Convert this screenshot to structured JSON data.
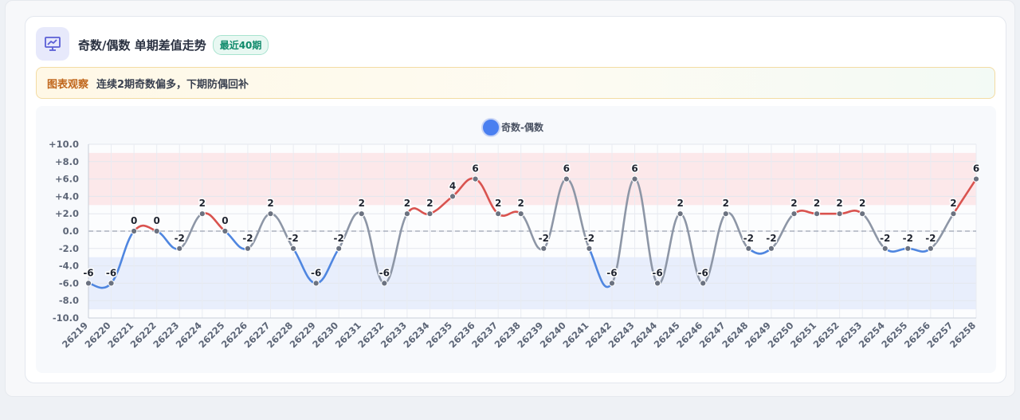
{
  "header": {
    "title": "奇数/偶数 单期差值走势",
    "badge": "最近40期"
  },
  "note": {
    "label": "图表观察",
    "text": "连续2期奇数偏多，下期防偶回补"
  },
  "colors": {
    "positive_line": "#d9534f",
    "negative_line": "#4f86e0",
    "zero_line": "#8d96a6",
    "positive_band": "#fbe4e6",
    "negative_band": "#e4ebfb",
    "legend_dot": "#4a7ff0",
    "accent": "#5b5fd6"
  },
  "chart_data": {
    "type": "line",
    "legend": "奇数-偶数",
    "legend_position": "top-center",
    "x": [
      "26219",
      "26220",
      "26221",
      "26222",
      "26223",
      "26224",
      "26225",
      "26226",
      "26227",
      "26228",
      "26229",
      "26230",
      "26231",
      "26232",
      "26233",
      "26234",
      "26235",
      "26236",
      "26237",
      "26238",
      "26239",
      "26240",
      "26241",
      "26242",
      "26243",
      "26244",
      "26245",
      "26246",
      "26247",
      "26248",
      "26249",
      "26250",
      "26251",
      "26252",
      "26253",
      "26254",
      "26255",
      "26256",
      "26257",
      "26258"
    ],
    "series": [
      {
        "name": "奇数-偶数",
        "values": [
          -6,
          -6,
          0,
          0,
          -2,
          2,
          0,
          -2,
          2,
          -2,
          -6,
          -2,
          2,
          -6,
          2,
          2,
          4,
          6,
          2,
          2,
          -2,
          6,
          -2,
          -6,
          6,
          -6,
          2,
          -6,
          2,
          -2,
          -2,
          2,
          2,
          2,
          2,
          -2,
          -2,
          -2,
          2,
          6
        ]
      }
    ],
    "y_ticks": [
      "+10.0",
      "+8.0",
      "+6.0",
      "+4.0",
      "+2.0",
      "0.0",
      "-2.0",
      "-4.0",
      "-6.0",
      "-8.0",
      "-10.0"
    ],
    "ylim": [
      -10,
      10
    ],
    "bands": [
      {
        "from": 3,
        "to": 9,
        "color": "positive"
      },
      {
        "from": -9,
        "to": -3,
        "color": "negative"
      }
    ],
    "zero_reference_line": true,
    "grid": true
  }
}
